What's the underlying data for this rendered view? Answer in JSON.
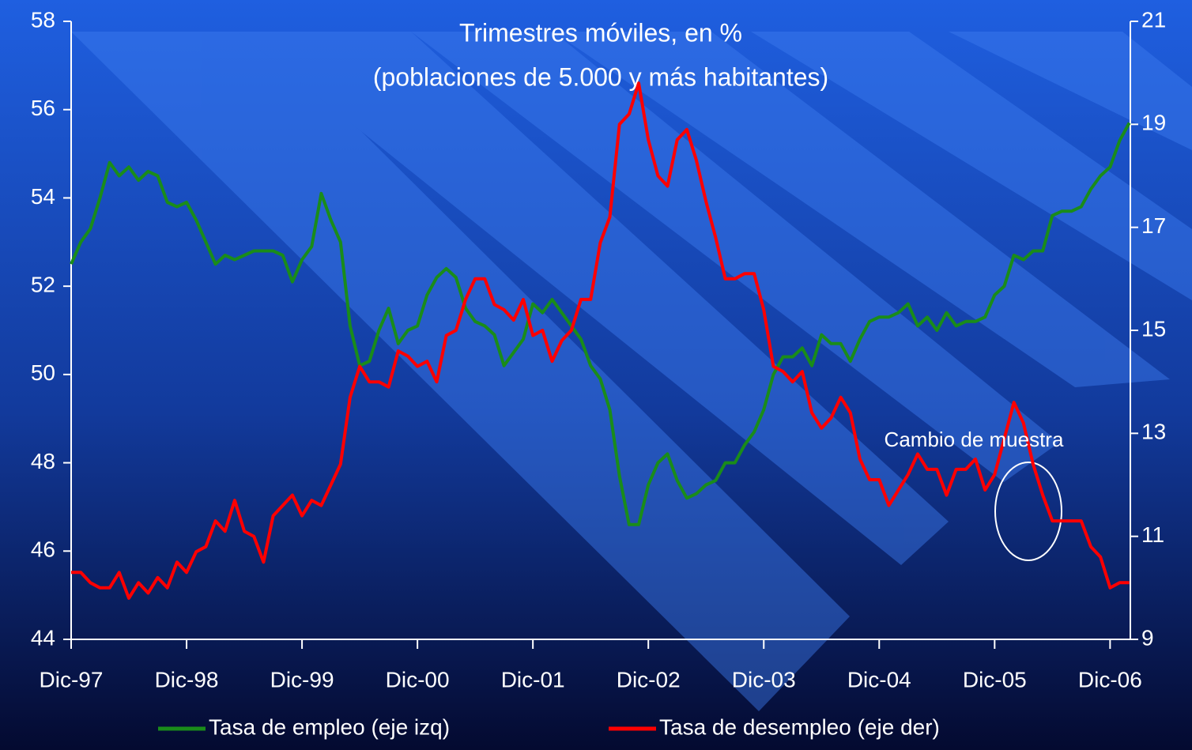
{
  "chart_data": {
    "type": "line",
    "title": "Trimestres móviles, en %",
    "subtitle": "(poblaciones de 5.000 y más habitantes)",
    "categories": [
      "Dic-97",
      null,
      null,
      null,
      null,
      null,
      null,
      null,
      null,
      null,
      null,
      null,
      "Dic-98",
      null,
      null,
      null,
      null,
      null,
      null,
      null,
      null,
      null,
      null,
      null,
      "Dic-99",
      null,
      null,
      null,
      null,
      null,
      null,
      null,
      null,
      null,
      null,
      null,
      "Dic-00",
      null,
      null,
      null,
      null,
      null,
      null,
      null,
      null,
      null,
      null,
      null,
      "Dic-01",
      null,
      null,
      null,
      null,
      null,
      null,
      null,
      null,
      null,
      null,
      null,
      "Dic-02",
      null,
      null,
      null,
      null,
      null,
      null,
      null,
      null,
      null,
      null,
      null,
      "Dic-03",
      null,
      null,
      null,
      null,
      null,
      null,
      null,
      null,
      null,
      null,
      null,
      "Dic-04",
      null,
      null,
      null,
      null,
      null,
      null,
      null,
      null,
      null,
      null,
      null,
      "Dic-05",
      null,
      null,
      null,
      null,
      null,
      null,
      null,
      null,
      null,
      null,
      null,
      "Dic-06",
      null,
      null
    ],
    "series": [
      {
        "name": "Tasa de empleo (eje izq)",
        "color": "#1a8c1a",
        "axis": "y",
        "values": [
          52.5,
          53.0,
          53.3,
          54.0,
          54.8,
          54.5,
          54.7,
          54.4,
          54.6,
          54.5,
          53.9,
          53.8,
          53.9,
          53.5,
          53.0,
          52.5,
          52.7,
          52.6,
          52.7,
          52.8,
          52.8,
          52.8,
          52.7,
          52.1,
          52.6,
          52.9,
          54.1,
          53.5,
          53.0,
          51.1,
          50.2,
          50.3,
          51.0,
          51.5,
          50.7,
          51.0,
          51.1,
          51.8,
          52.2,
          52.4,
          52.2,
          51.5,
          51.2,
          51.1,
          50.9,
          50.2,
          50.5,
          50.8,
          51.6,
          51.4,
          51.7,
          51.4,
          51.1,
          50.8,
          50.2,
          49.9,
          49.2,
          47.7,
          46.6,
          46.6,
          47.5,
          48.0,
          48.2,
          47.6,
          47.2,
          47.3,
          47.5,
          47.6,
          48.0,
          48.0,
          48.4,
          48.7,
          49.2,
          50.0,
          50.4,
          50.4,
          50.6,
          50.2,
          50.9,
          50.7,
          50.7,
          50.3,
          50.8,
          51.2,
          51.3,
          51.3,
          51.4,
          51.6,
          51.1,
          51.3,
          51.0,
          51.4,
          51.1,
          51.2,
          51.2,
          51.3,
          51.8,
          52.0,
          52.7,
          52.6,
          52.8,
          52.8,
          53.6,
          53.7,
          53.7,
          53.8,
          54.2,
          54.5,
          54.7,
          55.3,
          55.7
        ]
      },
      {
        "name": "Tasa de desempleo (eje der)",
        "color": "#ff0000",
        "axis": "y2",
        "values": [
          10.3,
          10.3,
          10.1,
          10.0,
          10.0,
          10.3,
          9.8,
          10.1,
          9.9,
          10.2,
          10.0,
          10.5,
          10.3,
          10.7,
          10.8,
          11.3,
          11.1,
          11.7,
          11.1,
          11.0,
          10.5,
          11.4,
          11.6,
          11.8,
          11.4,
          11.7,
          11.6,
          12.0,
          12.4,
          13.7,
          14.3,
          14.0,
          14.0,
          13.9,
          14.6,
          14.5,
          14.3,
          14.4,
          14.0,
          14.9,
          15.0,
          15.6,
          16.0,
          16.0,
          15.5,
          15.4,
          15.2,
          15.6,
          14.9,
          15.0,
          14.4,
          14.8,
          15.0,
          15.6,
          15.6,
          16.7,
          17.2,
          19.0,
          19.2,
          19.8,
          18.7,
          18.0,
          17.8,
          18.7,
          18.9,
          18.3,
          17.5,
          16.8,
          16.0,
          16.0,
          16.1,
          16.1,
          15.4,
          14.3,
          14.2,
          14.0,
          14.2,
          13.4,
          13.1,
          13.3,
          13.7,
          13.4,
          12.5,
          12.1,
          12.1,
          11.6,
          11.9,
          12.2,
          12.6,
          12.3,
          12.3,
          11.8,
          12.3,
          12.3,
          12.5,
          11.9,
          12.2,
          12.9,
          13.6,
          13.2,
          12.4,
          11.8,
          11.3,
          11.3,
          11.3,
          11.3,
          10.8,
          10.6,
          10.0,
          10.1,
          10.1
        ]
      }
    ],
    "ylim": [
      44,
      58
    ],
    "yticks": [
      44,
      46,
      48,
      50,
      52,
      54,
      56,
      58
    ],
    "y2lim": [
      9,
      21
    ],
    "y2ticks": [
      9,
      11,
      13,
      15,
      17,
      19,
      21
    ],
    "grid": false,
    "legend": "bottom",
    "annotations": [
      {
        "text": "Cambio de muestra"
      }
    ]
  }
}
